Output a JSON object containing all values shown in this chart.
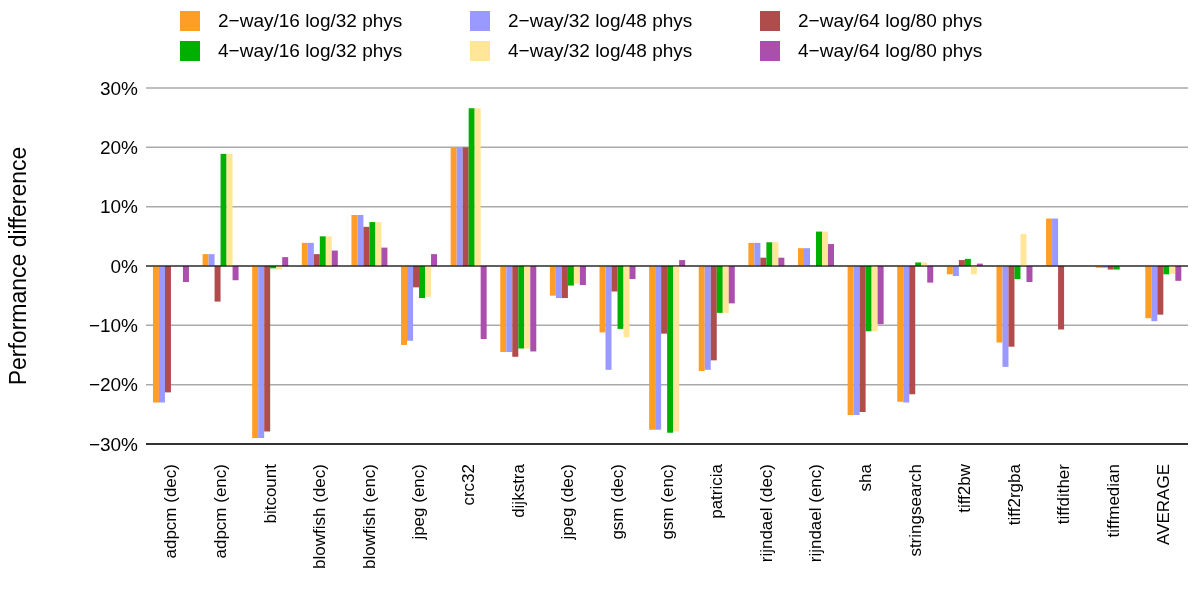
{
  "chart_data": {
    "type": "bar",
    "ylabel": "Performance difference",
    "categories": [
      "adpcm (dec)",
      "adpcm (enc)",
      "bitcount",
      "blowfish (dec)",
      "blowfish (enc)",
      "jpeg (enc)",
      "crc32",
      "dijkstra",
      "jpeg (dec)",
      "gsm (dec)",
      "gsm (enc)",
      "patricia",
      "rijndael (dec)",
      "rijndael (enc)",
      "sha",
      "stringsearch",
      "tiff2bw",
      "tiff2rgba",
      "tiffdither",
      "tiffmedian",
      "AVERAGE"
    ],
    "series": [
      {
        "name": "2−way/16 log/32 phys",
        "color": "#ff9e27",
        "values": [
          -23.0,
          2.0,
          -29.0,
          3.9,
          8.6,
          -13.3,
          20.0,
          -14.5,
          -5.0,
          -11.2,
          -27.6,
          -17.7,
          3.9,
          3.0,
          -25.1,
          -22.9,
          -1.4,
          -12.9,
          8.0,
          -0.3,
          -8.8
        ]
      },
      {
        "name": "2−way/32 log/48 phys",
        "color": "#9999ff",
        "values": [
          -23.0,
          2.0,
          -29.0,
          3.9,
          8.6,
          -12.6,
          20.0,
          -14.5,
          -5.4,
          -17.5,
          -27.6,
          -17.5,
          3.9,
          3.0,
          -25.1,
          -23.0,
          -1.7,
          -17.0,
          8.0,
          -0.3,
          -9.3
        ]
      },
      {
        "name": "2−way/64 log/80 phys",
        "color": "#b04c4c",
        "values": [
          -21.3,
          -6.0,
          -27.9,
          2.0,
          6.6,
          -3.6,
          20.0,
          -15.3,
          -5.4,
          -4.3,
          -11.4,
          -15.9,
          1.4,
          0,
          -24.6,
          -21.6,
          1.0,
          -13.6,
          -10.7,
          -0.6,
          -8.2
        ]
      },
      {
        "name": "4−way/16 log/32 phys",
        "color": "#00b000",
        "values": [
          0,
          18.9,
          -0.4,
          5.0,
          7.4,
          -5.4,
          26.6,
          -13.9,
          -3.3,
          -10.6,
          -28.1,
          -7.9,
          4.0,
          5.8,
          -11.0,
          0.6,
          1.2,
          -2.2,
          0,
          -0.6,
          -1.4
        ]
      },
      {
        "name": "4−way/32 log/48 phys",
        "color": "#ffe699",
        "values": [
          0,
          18.9,
          -0.6,
          5.0,
          7.4,
          -5.2,
          26.6,
          -13.9,
          -3.0,
          -12.0,
          -27.9,
          -7.9,
          4.0,
          5.8,
          -11.0,
          0.6,
          -1.4,
          5.4,
          0,
          0,
          -1.3
        ]
      },
      {
        "name": "4−way/64 log/80 phys",
        "color": "#aa4fab",
        "values": [
          -2.7,
          -2.4,
          1.5,
          2.6,
          3.1,
          2.0,
          -12.3,
          -14.4,
          -3.2,
          -2.2,
          1.0,
          -6.3,
          1.4,
          3.7,
          -9.8,
          -2.8,
          0.4,
          -2.7,
          0,
          0,
          -2.5
        ]
      }
    ],
    "ylim": [
      -30,
      30
    ],
    "yticks": [
      {
        "value": -30,
        "label": "−30%"
      },
      {
        "value": -20,
        "label": "−20%"
      },
      {
        "value": -10,
        "label": "−10%"
      },
      {
        "value": 0,
        "label": "0%"
      },
      {
        "value": 10,
        "label": "10%"
      },
      {
        "value": 20,
        "label": "20%"
      },
      {
        "value": 30,
        "label": "30%"
      }
    ],
    "ref_lines": [
      {
        "axis": "y",
        "value": 0,
        "color": "#000000"
      }
    ],
    "grid": "y",
    "legend": "top"
  }
}
